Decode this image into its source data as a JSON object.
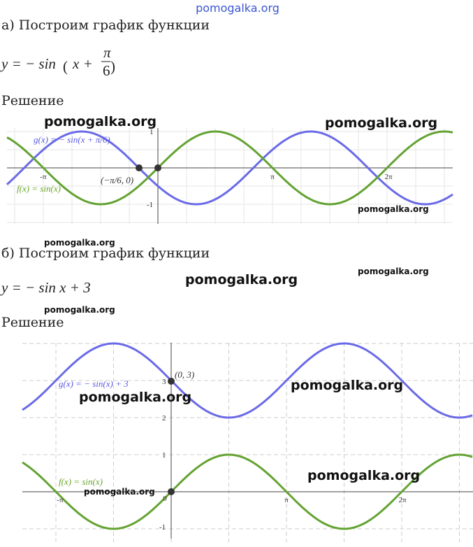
{
  "watermark_top": "pomogalka.org",
  "part_a": {
    "heading": "а) Построим график функции",
    "formula": {
      "prefix": "y = − sin",
      "paren_open": "(",
      "argument": "x +",
      "numerator": "π",
      "denominator": "6",
      "paren_close": ")"
    },
    "solution_label": "Решение",
    "graph": {
      "g_label": "g(x) = − sin(x + π/6)",
      "f_label": "f(x) = sin(x)",
      "point_label": "(−π/6, 0)",
      "x_ticks": [
        "-π",
        "π",
        "2π"
      ],
      "y_ticks": [
        "1",
        "-1"
      ]
    }
  },
  "part_b": {
    "heading": "б) Построим график функции",
    "formula": "y = − sin x + 3",
    "solution_label": "Решение",
    "graph": {
      "g_label": "g(x) = − sin(x) + 3",
      "f_label": "f(x) = sin(x)",
      "point_label": "(0, 3)",
      "x_ticks": [
        "-π",
        "0",
        "π",
        "2π"
      ],
      "y_ticks": [
        "3",
        "2",
        "1",
        "-1"
      ]
    }
  },
  "watermarks": [
    "pomogalka.org",
    "pomogalka.org",
    "pomogalka.org",
    "pomogalka.org",
    "pomogalka.org",
    "pomogalka.org",
    "pomogalka.org",
    "pomogalka.org",
    "pomogalka.org",
    "pomogalka.org",
    "pomogalka.org"
  ]
}
